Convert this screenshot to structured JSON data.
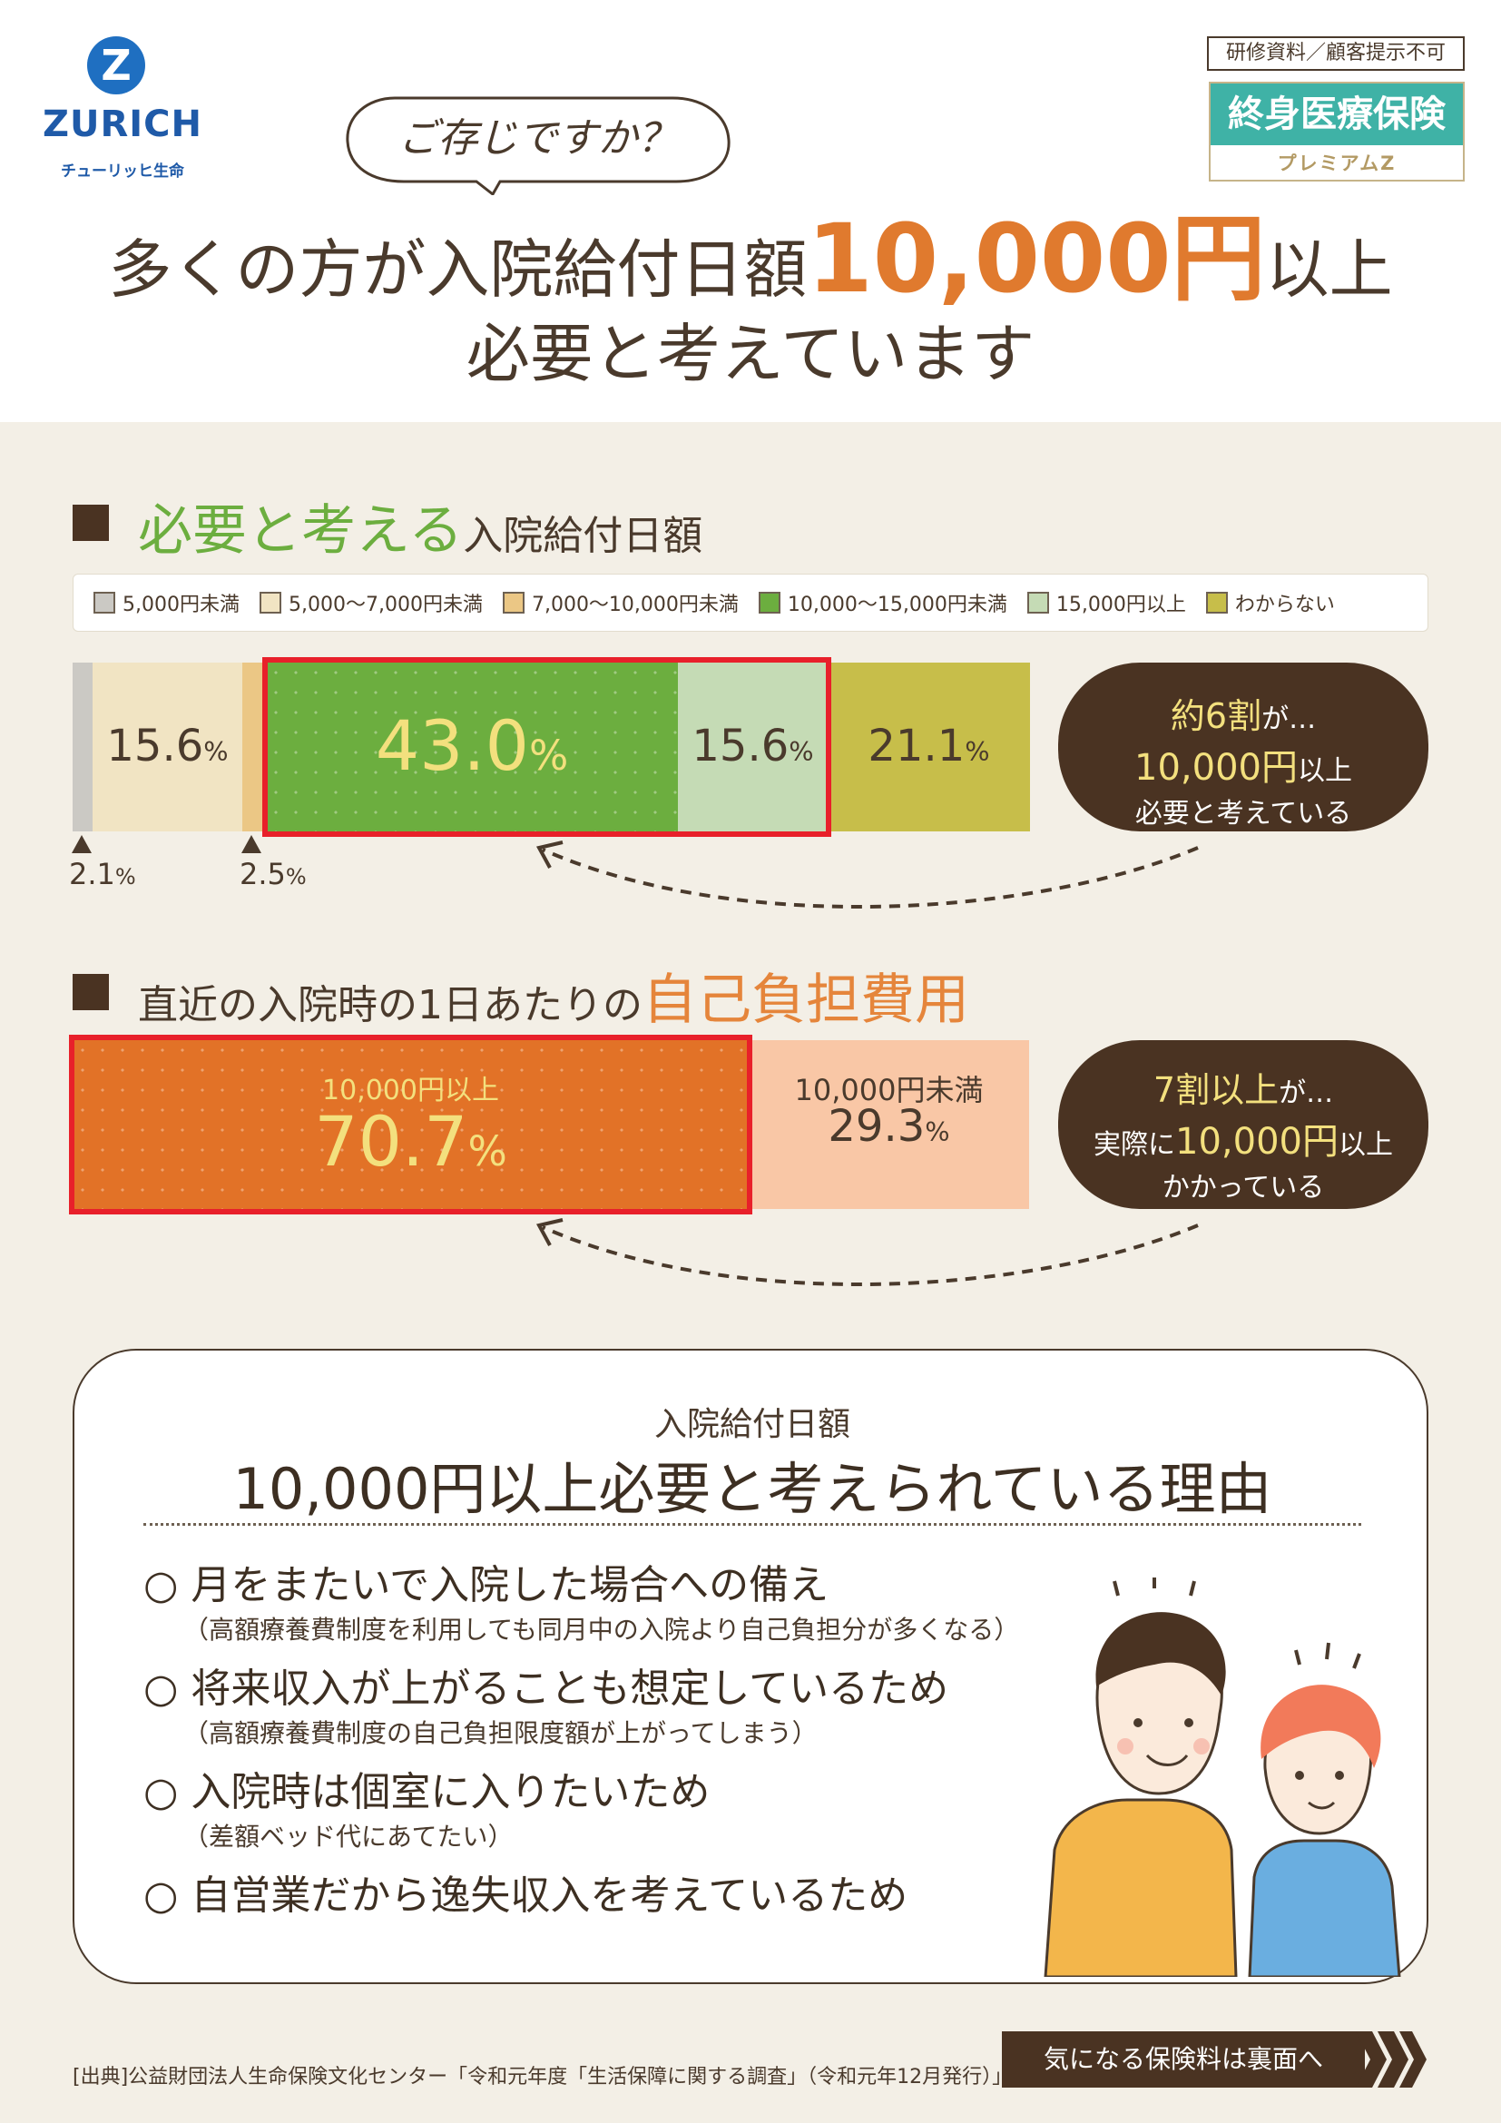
{
  "brand": {
    "logo_mark": "Z",
    "name": "ZURICH",
    "sub": "チューリッヒ生命"
  },
  "bubble": {
    "text": "ご存じですか？"
  },
  "notice": "研修資料／顧客提示不可",
  "product": {
    "name": "終身医療保険",
    "sub": "プレミアムZ"
  },
  "headline": {
    "line1_prefix": "多くの方が入院給付日額",
    "line1_amount": "10,000円",
    "line1_suffix": "以上",
    "line2": "必要と考えています"
  },
  "section1": {
    "title_highlight": "必要と考える",
    "title_rest": "入院給付日額",
    "legend": [
      {
        "label": "5,000円未満",
        "color": "#cbc9c4"
      },
      {
        "label": "5,000〜7,000円未満",
        "color": "#f1e4c3"
      },
      {
        "label": "7,000〜10,000円未満",
        "color": "#ebc785"
      },
      {
        "label": "10,000〜15,000円未満",
        "color": "#6cae3f"
      },
      {
        "label": "15,000円以上",
        "color": "#c5dbb5"
      },
      {
        "label": "わからない",
        "color": "#c7be4a"
      }
    ],
    "segments": [
      {
        "value": 2.1,
        "label": "",
        "color": "#cbc9c4"
      },
      {
        "value": 15.6,
        "label": "15.6",
        "color": "#f1e4c3"
      },
      {
        "value": 2.5,
        "label": "",
        "color": "#ebc785"
      },
      {
        "value": 43.0,
        "label": "43.0",
        "color": "#6cae3f"
      },
      {
        "value": 15.6,
        "label": "15.6",
        "color": "#c5dbb5"
      },
      {
        "value": 21.1,
        "label": "21.1",
        "color": "#c7be4a"
      }
    ],
    "percent_sign": "%",
    "note_1": "2.1",
    "note_2": "2.5",
    "callout": {
      "line1_a": "約6割",
      "line1_b": "が…",
      "line2_a": "10,000円",
      "line2_b": "以上",
      "line3": "必要と考えている"
    }
  },
  "section2": {
    "title_rest": "直近の入院時の1日あたりの",
    "title_highlight": "自己負担費用",
    "segments": [
      {
        "value": 70.7,
        "caption": "10,000円以上",
        "label": "70.7",
        "color": "#e27227"
      },
      {
        "value": 29.3,
        "caption": "10,000円未満",
        "label": "29.3",
        "color": "#f9c7a6"
      }
    ],
    "callout": {
      "line1_a": "7割以上",
      "line1_b": "が…",
      "line2_a": "実際に",
      "line2_b": "10,000円",
      "line2_c": "以上",
      "line3": "かかっている"
    }
  },
  "reasons": {
    "subtitle": "入院給付日額",
    "title": "10,000円以上必要と考えられている理由",
    "bullet": "○",
    "items": [
      {
        "main": "月をまたいで入院した場合への備え",
        "note": "（高額療養費制度を利用しても同月中の入院より自己負担分が多くなる）"
      },
      {
        "main": "将来収入が上がることも想定しているため",
        "note": "（高額療養費制度の自己負担限度額が上がってしまう）"
      },
      {
        "main": "入院時は個室に入りたいため",
        "note": "（差額ベッド代にあてたい）"
      },
      {
        "main": "自営業だから逸失収入を考えているため",
        "note": ""
      }
    ]
  },
  "footer": {
    "source": "[出典]公益財団法人生命保険文化センター「令和元年度「生活保障に関する調査」（令和元年12月発行）」",
    "button": "気になる保険料は裏面へ"
  }
}
